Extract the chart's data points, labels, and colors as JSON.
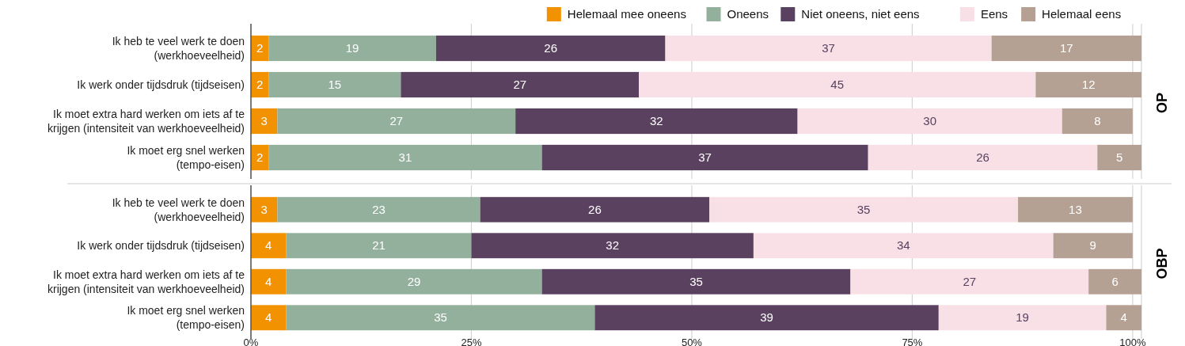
{
  "chart_data": [
    {
      "type": "bar",
      "annotations": [
        "OP"
      ],
      "orientation": "horizontal",
      "stacked": true,
      "data_labels": true,
      "grid": "x",
      "legend": "top right",
      "tick_labels": "y",
      "categories": [
        "Ik heb te veel werk te doen (werkhoeveelheid)",
        "Ik werk onder tijdsdruk (tijdseisen)",
        "Ik moet extra hard werken om iets af te krijgen (intensiteit van werkhoeveelheid)",
        "Ik moet erg snel werken (tempo-eisen)"
      ],
      "xlim": [
        0,
        101
      ],
      "xticks": [
        {
          "value": 0,
          "label": null
        },
        {
          "value": 25,
          "label": null
        },
        {
          "value": 50,
          "label": null
        },
        {
          "value": 75,
          "label": null
        },
        {
          "value": 100,
          "label": null
        }
      ],
      "series": [
        {
          "name": "Helemaal mee oneens",
          "color": "#f39200",
          "values": [
            2,
            2,
            3,
            2
          ]
        },
        {
          "name": "Oneens",
          "color": "#93b09d",
          "values": [
            19,
            15,
            27,
            31
          ]
        },
        {
          "name": "Niet oneens, niet eens",
          "color": "#5b4160",
          "values": [
            26,
            27,
            32,
            37
          ]
        },
        {
          "name": "Eens",
          "color": "#f8e0e6",
          "values": [
            37,
            45,
            30,
            26
          ]
        },
        {
          "name": "Helemaal eens",
          "color": "#b5a194",
          "values": [
            17,
            12,
            8,
            5
          ]
        }
      ]
    },
    {
      "type": "bar",
      "annotations": [
        "OBP"
      ],
      "orientation": "horizontal",
      "stacked": true,
      "data_labels": true,
      "grid": "x",
      "categories": [
        "Ik heb te veel werk te doen (werkhoeveelheid)",
        "Ik werk onder tijdsdruk (tijdseisen)",
        "Ik moet extra hard werken om iets af te krijgen (intensiteit van werkhoeveelheid)",
        "Ik moet erg snel werken (tempo-eisen)"
      ],
      "xlim": [
        0,
        101
      ],
      "xticks": [
        {
          "value": 0,
          "label": "0%"
        },
        {
          "value": 25,
          "label": "25%"
        },
        {
          "value": 50,
          "label": "50%"
        },
        {
          "value": 75,
          "label": "75%"
        },
        {
          "value": 100,
          "label": "100%"
        }
      ],
      "series": [
        {
          "color": "#f39200",
          "values": [
            3,
            4,
            4,
            4
          ]
        },
        {
          "color": "#93b09d",
          "values": [
            23,
            21,
            29,
            35
          ]
        },
        {
          "color": "#5b4160",
          "values": [
            26,
            32,
            35,
            39
          ]
        },
        {
          "color": "#f8e0e6",
          "values": [
            35,
            34,
            27,
            19
          ]
        },
        {
          "color": "#b5a194",
          "values": [
            13,
            9,
            6,
            4
          ]
        }
      ]
    }
  ]
}
